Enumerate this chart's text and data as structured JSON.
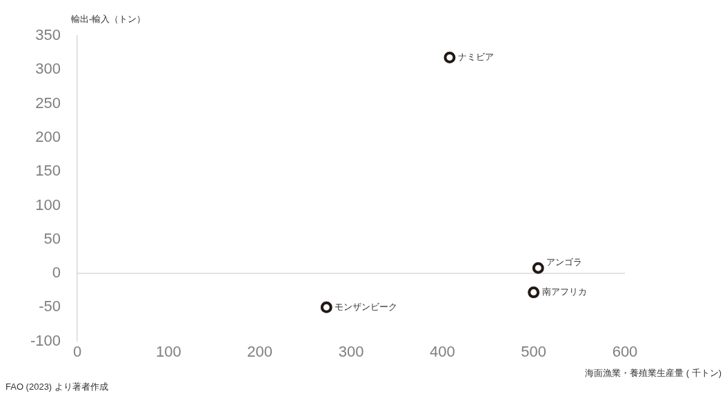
{
  "chart_data": {
    "type": "scatter",
    "xlabel": "海面漁業・養殖業生産量 ( 千トン)",
    "ylabel": "輸出-輸入（トン）",
    "x": [
      408,
      505,
      500,
      273
    ],
    "series": [
      {
        "color": "#231815",
        "values": [
          318,
          8,
          -28,
          -50
        ]
      }
    ],
    "xlim": [
      0,
      600
    ],
    "xticks": [
      0,
      100,
      200,
      300,
      400,
      500,
      600
    ],
    "ylim": [
      -100,
      350
    ],
    "yticks": [
      -100,
      -50,
      0,
      50,
      100,
      150,
      200,
      250,
      300,
      350
    ],
    "grid": false,
    "legend": false,
    "marker": "circle",
    "ref_lines": [
      {
        "axis": "y",
        "value": 0,
        "color": "#d9d9d9"
      }
    ],
    "annotations": [
      {
        "text": "ナミビア",
        "x": 408,
        "y": 318
      },
      {
        "text": "アンゴラ",
        "x": 505,
        "y": 8
      },
      {
        "text": "南アフリカ",
        "x": 500,
        "y": -28
      },
      {
        "text": "モンザンビーク",
        "x": 273,
        "y": -50
      },
      "FAO (2023) より著者作成"
    ]
  }
}
